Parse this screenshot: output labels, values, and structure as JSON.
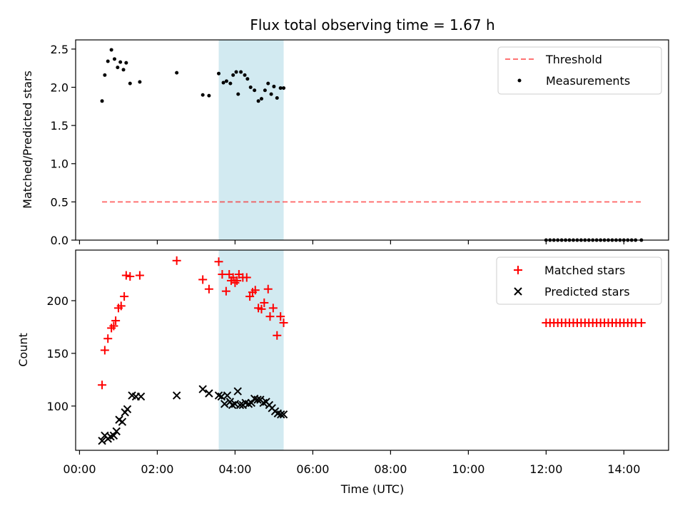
{
  "chart_data": {
    "type": "scatter",
    "title": "Flux total observing time = 1.67 h",
    "x_axis": {
      "label": "Time (UTC)",
      "ticks_hours": [
        0,
        2,
        4,
        6,
        8,
        10,
        12,
        14
      ],
      "tick_labels": [
        "00:00",
        "02:00",
        "04:00",
        "06:00",
        "08:00",
        "10:00",
        "12:00",
        "14:00"
      ],
      "xlim_hours": [
        -0.1,
        15.15
      ]
    },
    "highlight_span_hours": [
      3.58,
      5.25
    ],
    "highlight_color": "#add8e6",
    "panels": [
      {
        "id": "ratio",
        "ylabel": "Matched/Predicted stars",
        "ylim": [
          0,
          2.62
        ],
        "yticks": [
          0,
          0.5,
          1.0,
          1.5,
          2.0,
          2.5
        ],
        "ytick_labels": [
          "0.0",
          "0.5",
          "1.0",
          "1.5",
          "2.0",
          "2.5"
        ],
        "legend_position": "upper right",
        "threshold": {
          "name": "Threshold",
          "value": 0.5,
          "x_range_hours": [
            0.58,
            14.45
          ],
          "color": "#ff0000",
          "style": "dashed"
        },
        "series": [
          {
            "name": "Measurements",
            "marker": "dot",
            "color": "#000000",
            "points": [
              [
                0.58,
                1.82
              ],
              [
                0.65,
                2.16
              ],
              [
                0.73,
                2.34
              ],
              [
                0.82,
                2.49
              ],
              [
                0.9,
                2.37
              ],
              [
                0.98,
                2.26
              ],
              [
                1.05,
                2.33
              ],
              [
                1.13,
                2.23
              ],
              [
                1.2,
                2.32
              ],
              [
                1.3,
                2.05
              ],
              [
                1.55,
                2.07
              ],
              [
                2.5,
                2.19
              ],
              [
                3.17,
                1.9
              ],
              [
                3.33,
                1.89
              ],
              [
                3.58,
                2.18
              ],
              [
                3.7,
                2.06
              ],
              [
                3.78,
                2.08
              ],
              [
                3.88,
                2.05
              ],
              [
                3.95,
                2.16
              ],
              [
                4.03,
                2.2
              ],
              [
                4.08,
                1.91
              ],
              [
                4.15,
                2.2
              ],
              [
                4.25,
                2.16
              ],
              [
                4.32,
                2.11
              ],
              [
                4.4,
                2.0
              ],
              [
                4.5,
                1.96
              ],
              [
                4.6,
                1.82
              ],
              [
                4.68,
                1.85
              ],
              [
                4.77,
                1.96
              ],
              [
                4.85,
                2.05
              ],
              [
                4.93,
                1.91
              ],
              [
                5.0,
                2.01
              ],
              [
                5.08,
                1.86
              ],
              [
                5.17,
                1.99
              ],
              [
                5.25,
                1.99
              ],
              [
                12.0,
                0.0
              ],
              [
                12.1,
                0.0
              ],
              [
                12.2,
                0.0
              ],
              [
                12.3,
                0.0
              ],
              [
                12.4,
                0.0
              ],
              [
                12.5,
                0.0
              ],
              [
                12.6,
                0.0
              ],
              [
                12.7,
                0.0
              ],
              [
                12.8,
                0.0
              ],
              [
                12.9,
                0.0
              ],
              [
                13.0,
                0.0
              ],
              [
                13.1,
                0.0
              ],
              [
                13.2,
                0.0
              ],
              [
                13.3,
                0.0
              ],
              [
                13.4,
                0.0
              ],
              [
                13.5,
                0.0
              ],
              [
                13.6,
                0.0
              ],
              [
                13.7,
                0.0
              ],
              [
                13.8,
                0.0
              ],
              [
                13.9,
                0.0
              ],
              [
                14.0,
                0.0
              ],
              [
                14.1,
                0.0
              ],
              [
                14.2,
                0.0
              ],
              [
                14.3,
                0.0
              ],
              [
                14.45,
                0.0
              ]
            ]
          }
        ]
      },
      {
        "id": "counts",
        "ylabel": "Count",
        "ylim": [
          58,
          248
        ],
        "yticks": [
          100,
          150,
          200
        ],
        "ytick_labels": [
          "100",
          "150",
          "200"
        ],
        "legend_position": "upper right",
        "series": [
          {
            "name": "Matched stars",
            "marker": "plus",
            "color": "#ff0000",
            "points": [
              [
                0.58,
                120
              ],
              [
                0.65,
                153
              ],
              [
                0.73,
                164
              ],
              [
                0.82,
                174
              ],
              [
                0.88,
                176
              ],
              [
                0.93,
                181
              ],
              [
                1.0,
                193
              ],
              [
                1.07,
                195
              ],
              [
                1.15,
                204
              ],
              [
                1.2,
                224
              ],
              [
                1.3,
                223
              ],
              [
                1.55,
                224
              ],
              [
                2.5,
                238
              ],
              [
                3.17,
                220
              ],
              [
                3.33,
                211
              ],
              [
                3.58,
                237
              ],
              [
                3.67,
                225
              ],
              [
                3.77,
                209
              ],
              [
                3.85,
                225
              ],
              [
                3.9,
                219
              ],
              [
                3.95,
                222
              ],
              [
                4.0,
                217
              ],
              [
                4.05,
                219
              ],
              [
                4.1,
                225
              ],
              [
                4.2,
                222
              ],
              [
                4.3,
                222
              ],
              [
                4.38,
                204
              ],
              [
                4.45,
                208
              ],
              [
                4.52,
                210
              ],
              [
                4.6,
                193
              ],
              [
                4.68,
                192
              ],
              [
                4.75,
                198
              ],
              [
                4.85,
                211
              ],
              [
                4.9,
                185
              ],
              [
                4.98,
                193
              ],
              [
                5.08,
                167
              ],
              [
                5.17,
                185
              ],
              [
                5.25,
                179
              ],
              [
                12.0,
                179
              ],
              [
                12.1,
                179
              ],
              [
                12.2,
                179
              ],
              [
                12.3,
                179
              ],
              [
                12.4,
                179
              ],
              [
                12.5,
                179
              ],
              [
                12.6,
                179
              ],
              [
                12.7,
                179
              ],
              [
                12.8,
                179
              ],
              [
                12.9,
                179
              ],
              [
                13.0,
                179
              ],
              [
                13.1,
                179
              ],
              [
                13.2,
                179
              ],
              [
                13.3,
                179
              ],
              [
                13.4,
                179
              ],
              [
                13.5,
                179
              ],
              [
                13.6,
                179
              ],
              [
                13.7,
                179
              ],
              [
                13.8,
                179
              ],
              [
                13.9,
                179
              ],
              [
                14.0,
                179
              ],
              [
                14.1,
                179
              ],
              [
                14.2,
                179
              ],
              [
                14.3,
                179
              ],
              [
                14.45,
                179
              ]
            ]
          },
          {
            "name": "Predicted stars",
            "marker": "x",
            "color": "#000000",
            "points": [
              [
                0.58,
                67
              ],
              [
                0.65,
                72
              ],
              [
                0.73,
                69
              ],
              [
                0.8,
                71
              ],
              [
                0.88,
                72
              ],
              [
                0.95,
                76
              ],
              [
                1.02,
                87
              ],
              [
                1.1,
                85
              ],
              [
                1.17,
                94
              ],
              [
                1.23,
                97
              ],
              [
                1.35,
                110
              ],
              [
                1.45,
                109
              ],
              [
                1.58,
                109
              ],
              [
                2.5,
                110
              ],
              [
                3.17,
                116
              ],
              [
                3.33,
                112
              ],
              [
                3.58,
                110
              ],
              [
                3.65,
                109
              ],
              [
                3.73,
                102
              ],
              [
                3.8,
                110
              ],
              [
                3.87,
                104
              ],
              [
                3.93,
                101
              ],
              [
                4.0,
                102
              ],
              [
                4.07,
                114
              ],
              [
                4.13,
                101
              ],
              [
                4.2,
                101
              ],
              [
                4.27,
                103
              ],
              [
                4.35,
                102
              ],
              [
                4.42,
                103
              ],
              [
                4.5,
                107
              ],
              [
                4.58,
                106
              ],
              [
                4.65,
                106
              ],
              [
                4.73,
                103
              ],
              [
                4.8,
                104
              ],
              [
                4.88,
                101
              ],
              [
                4.95,
                98
              ],
              [
                5.03,
                95
              ],
              [
                5.1,
                93
              ],
              [
                5.18,
                92
              ],
              [
                5.25,
                92
              ]
            ]
          }
        ]
      }
    ]
  }
}
